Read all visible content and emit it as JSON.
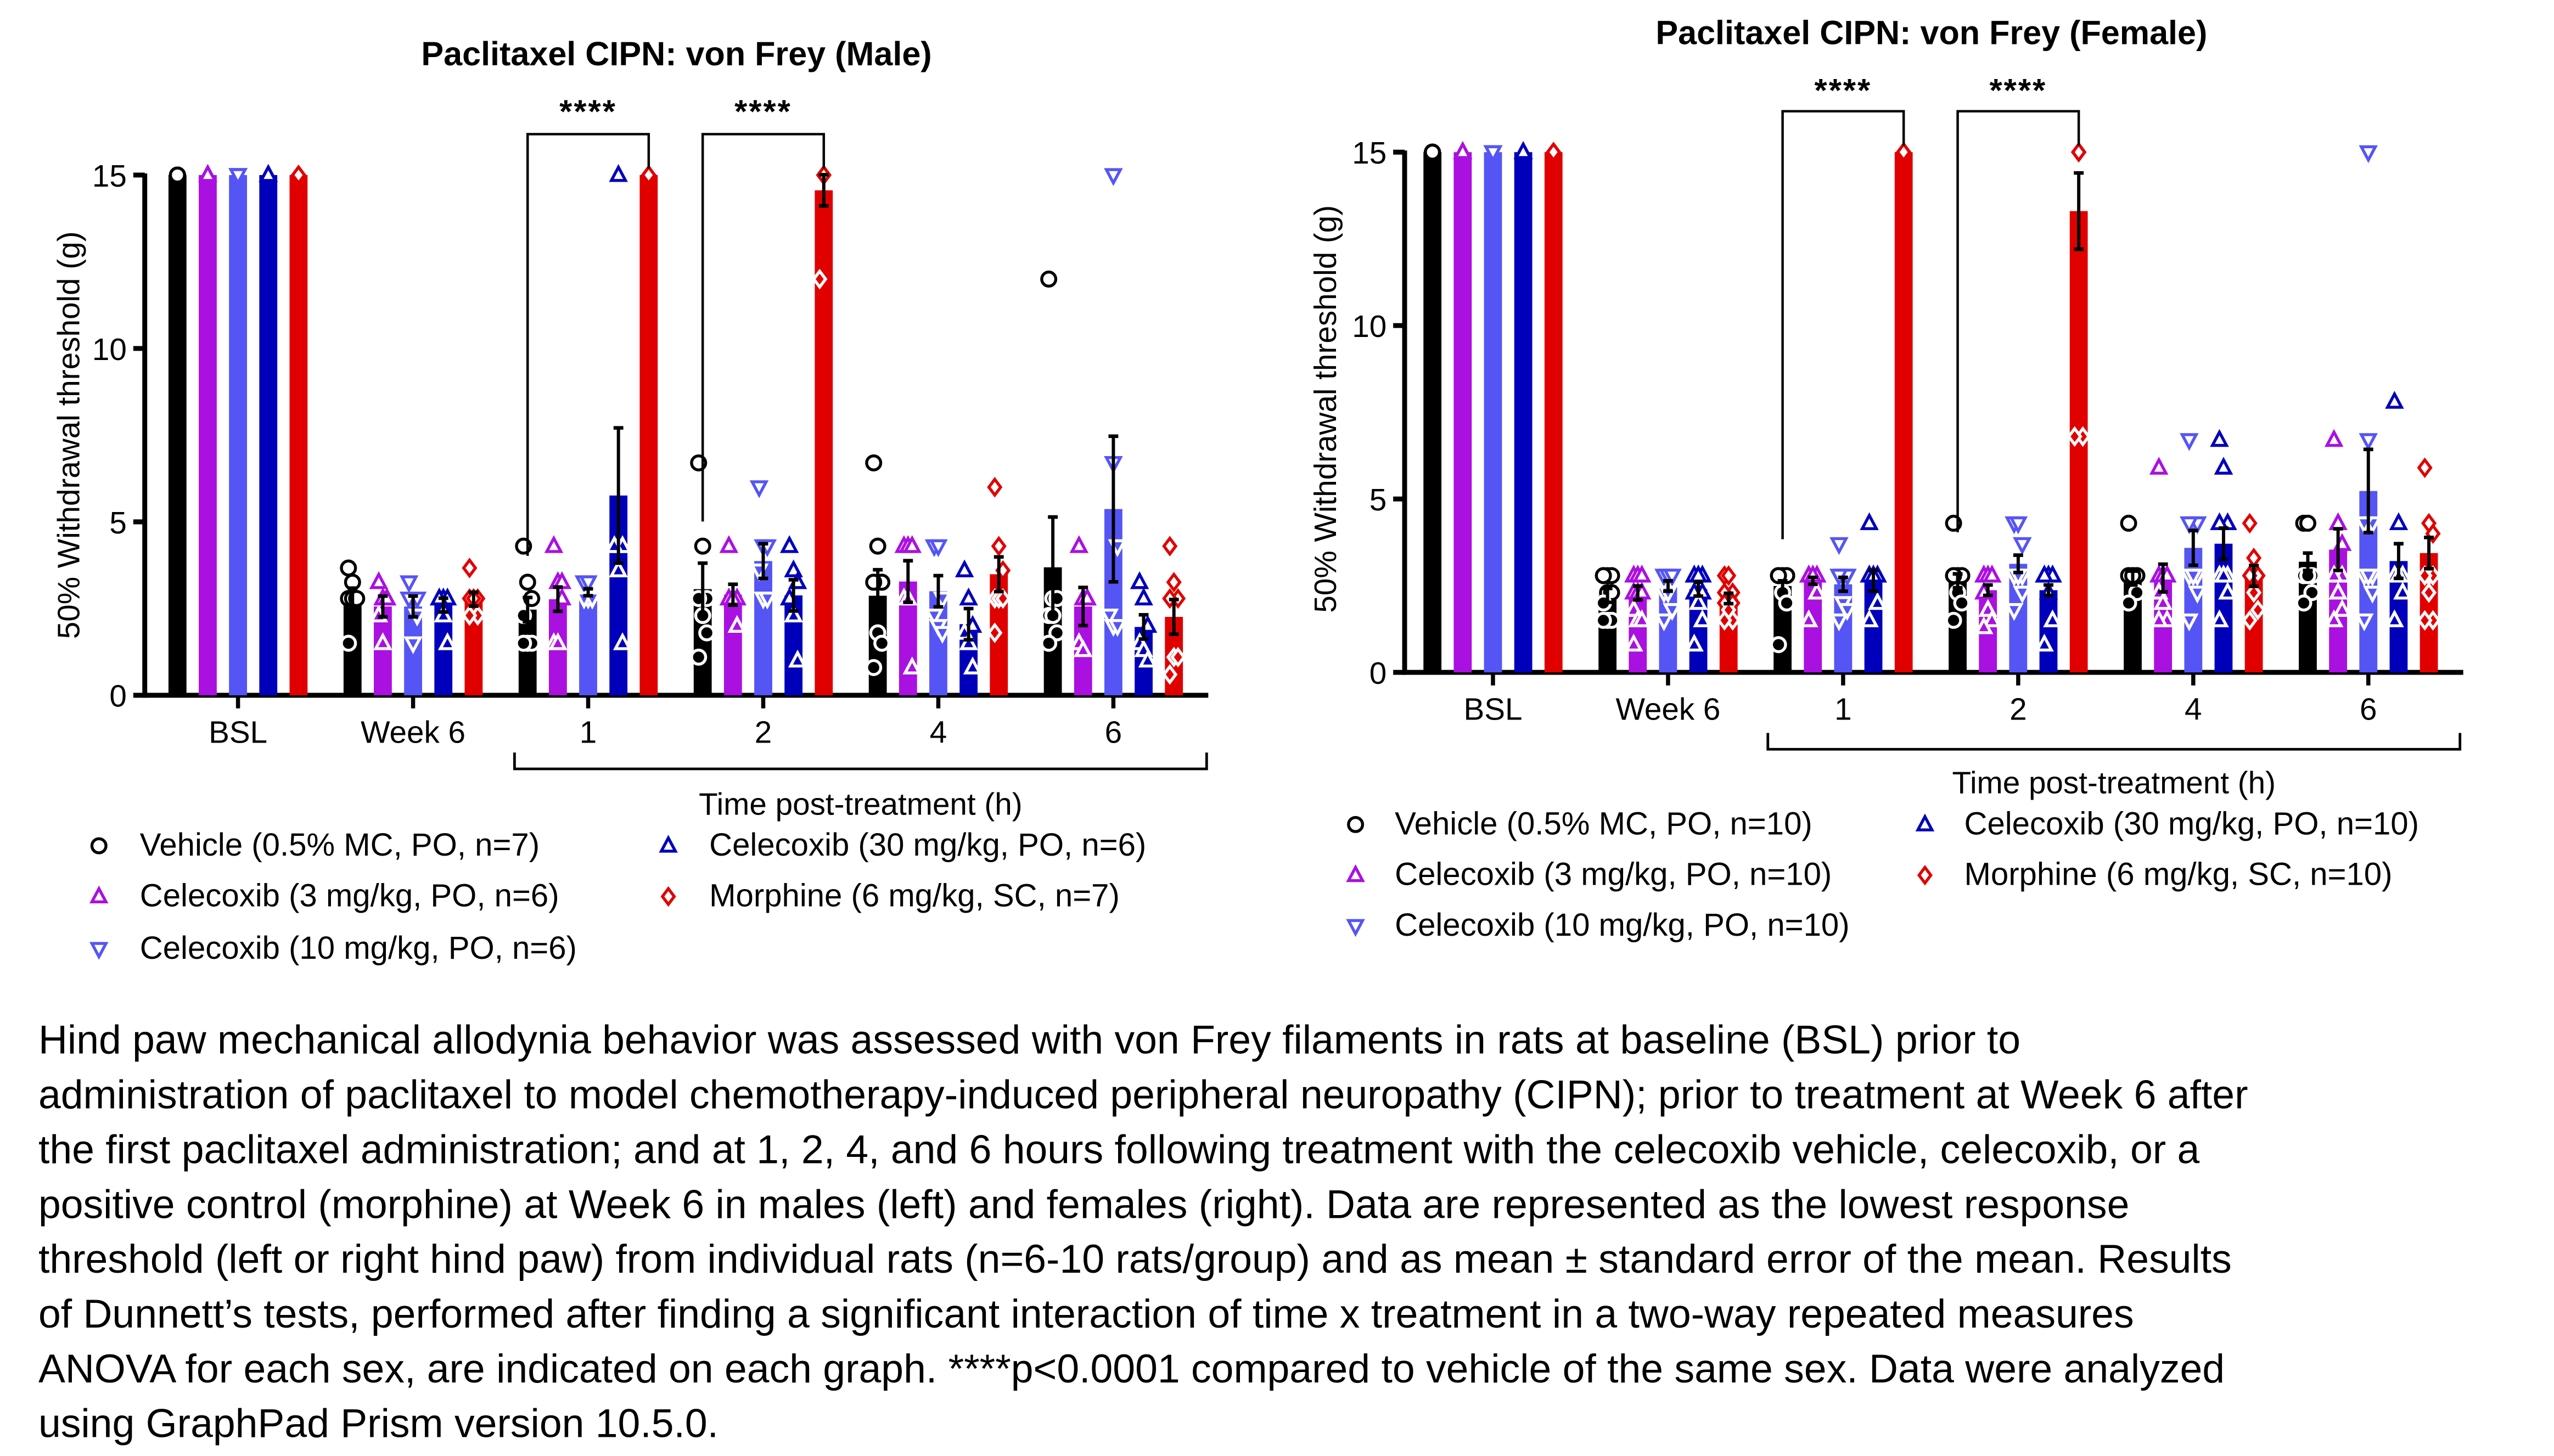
{
  "chart_data": [
    {
      "type": "bar",
      "title": "Paclitaxel CIPN: von Frey (Male)",
      "ylabel": "50% Withdrawal threshold (g)",
      "xlabel": "Time post-treatment (h)",
      "ylim": [
        0,
        15
      ],
      "yticks": [
        "0",
        "5",
        "10",
        "15"
      ],
      "categories": [
        "BSL",
        "Week 6",
        "1",
        "2",
        "4",
        "6"
      ],
      "grid": false,
      "legend_position": "bottom",
      "significance": [
        {
          "category": "1",
          "label": "****"
        },
        {
          "category": "2",
          "label": "****"
        }
      ],
      "series": [
        {
          "name": "Vehicle (0.5% MC, PO, n=7)",
          "color": "#000000",
          "marker": "circle",
          "values": [
            15,
            2.79,
            2.47,
            3.06,
            2.87,
            3.69
          ],
          "sem": [
            0,
            0.3,
            0.35,
            0.75,
            0.75,
            1.45
          ],
          "points": [
            [
              15,
              15,
              15,
              15,
              15,
              15,
              15
            ],
            [
              3.67,
              3.26,
              2.79,
              2.79,
              2.79,
              2.79,
              1.5
            ],
            [
              4.3,
              3.26,
              2.79,
              2.3,
              1.5,
              1.5,
              1.5
            ],
            [
              6.7,
              4.3,
              2.79,
              2.79,
              2.3,
              1.8,
              1.1
            ],
            [
              6.7,
              4.3,
              3.26,
              3.26,
              1.8,
              1.5,
              0.8
            ],
            [
              12,
              2.79,
              2.79,
              2.3,
              2.3,
              1.8,
              1.5
            ]
          ]
        },
        {
          "name": "Celecoxib (3 mg/kg, PO, n=6)",
          "color": "#aa10e0",
          "marker": "triangle-up",
          "values": [
            15,
            2.56,
            2.77,
            2.9,
            3.28,
            2.56
          ],
          "sem": [
            0,
            0.3,
            0.35,
            0.3,
            0.6,
            0.55
          ],
          "points": [
            [
              15,
              15,
              15,
              15,
              15,
              15
            ],
            [
              3.26,
              2.79,
              2.79,
              2.3,
              1.5,
              2.79
            ],
            [
              4.3,
              3.26,
              3.26,
              1.5,
              1.5,
              2.79
            ],
            [
              4.3,
              2.79,
              2.79,
              2.79,
              2.79,
              2.0
            ],
            [
              4.3,
              4.3,
              4.3,
              2.79,
              2.79,
              0.8
            ],
            [
              4.3,
              2.79,
              2.79,
              1.5,
              1.3,
              2.79
            ]
          ]
        },
        {
          "name": "Celecoxib (10 mg/kg, PO, n=6)",
          "color": "#5555f5",
          "marker": "triangle-down",
          "values": [
            15,
            2.56,
            2.97,
            3.87,
            3.0,
            5.37
          ],
          "sem": [
            0,
            0.3,
            0.1,
            0.5,
            0.45,
            2.1
          ],
          "points": [
            [
              15,
              15,
              15,
              15,
              15,
              15
            ],
            [
              3.26,
              2.79,
              2.79,
              2.79,
              1.5,
              2.3
            ],
            [
              3.26,
              2.79,
              2.79,
              2.79,
              3.26,
              2.79
            ],
            [
              6.0,
              4.3,
              4.3,
              3.6,
              2.79,
              2.79
            ],
            [
              4.3,
              4.3,
              2.79,
              2.3,
              2.0,
              1.8
            ],
            [
              15,
              6.7,
              4.3,
              2.3,
              2.0,
              2.0
            ]
          ]
        },
        {
          "name": "Celecoxib (30 mg/kg, PO, n=6)",
          "color": "#0000bb",
          "marker": "triangle-up",
          "values": [
            15,
            2.6,
            5.76,
            2.88,
            2.05,
            1.97
          ],
          "sem": [
            0,
            0.2,
            1.95,
            0.45,
            0.45,
            0.35
          ],
          "points": [
            [
              15,
              15,
              15,
              15,
              15,
              15
            ],
            [
              2.79,
              2.79,
              2.79,
              2.79,
              2.3,
              1.5
            ],
            [
              15,
              4.3,
              4.3,
              4.3,
              3.6,
              1.5
            ],
            [
              4.3,
              3.6,
              3.26,
              2.79,
              2.3,
              1.0
            ],
            [
              3.6,
              2.79,
              2.0,
              1.8,
              1.5,
              0.8
            ],
            [
              3.26,
              2.79,
              2.0,
              1.5,
              1.3,
              1.0
            ]
          ]
        },
        {
          "name": "Morphine (6 mg/kg, SC, n=7)",
          "color": "#e00000",
          "marker": "diamond",
          "values": [
            15,
            2.77,
            15,
            14.56,
            3.49,
            2.26
          ],
          "sem": [
            0,
            0.2,
            0,
            0.45,
            0.5,
            0.5
          ],
          "points": [
            [
              15,
              15,
              15,
              15,
              15,
              15,
              15
            ],
            [
              3.67,
              2.79,
              2.79,
              2.79,
              2.79,
              2.3,
              2.3
            ],
            [
              15,
              15,
              15,
              15,
              15,
              15,
              15
            ],
            [
              15,
              15,
              15,
              15,
              15,
              15,
              12.0
            ],
            [
              6.0,
              4.3,
              3.6,
              2.79,
              2.79,
              2.79,
              1.8
            ],
            [
              4.3,
              3.26,
              2.79,
              2.79,
              1.1,
              1.1,
              0.6
            ]
          ]
        }
      ]
    },
    {
      "type": "bar",
      "title": "Paclitaxel CIPN: von Frey (Female)",
      "ylabel": "50% Withdrawal threshold (g)",
      "xlabel": "Time post-treatment (h)",
      "ylim": [
        0,
        15
      ],
      "yticks": [
        "0",
        "5",
        "10",
        "15"
      ],
      "categories": [
        "BSL",
        "Week 6",
        "1",
        "2",
        "4",
        "6"
      ],
      "grid": false,
      "legend_position": "bottom",
      "significance": [
        {
          "category": "1",
          "label": "****"
        },
        {
          "category": "2",
          "label": "****"
        }
      ],
      "series": [
        {
          "name": "Vehicle (0.5% MC, PO, n=10)",
          "color": "#000000",
          "marker": "circle",
          "values": [
            15,
            2.22,
            2.49,
            2.64,
            2.72,
            3.19
          ],
          "sem": [
            0,
            0.2,
            0.15,
            0.2,
            0.2,
            0.25
          ],
          "points": [
            [
              15,
              15,
              15,
              15,
              15,
              15,
              15,
              15,
              15,
              15
            ],
            [
              2.79,
              2.79,
              2.79,
              2.79,
              2.3,
              2.3,
              2.0,
              1.5,
              1.5,
              1.5
            ],
            [
              2.79,
              2.79,
              2.79,
              2.79,
              2.79,
              2.79,
              2.79,
              2.3,
              2.0,
              0.8
            ],
            [
              4.3,
              2.79,
              2.79,
              2.79,
              2.79,
              2.79,
              2.79,
              2.3,
              2.0,
              1.5
            ],
            [
              4.3,
              2.79,
              2.79,
              2.79,
              2.79,
              2.79,
              2.79,
              2.79,
              2.3,
              2.0
            ],
            [
              4.3,
              4.3,
              2.79,
              2.79,
              2.79,
              2.79,
              2.79,
              2.79,
              2.3,
              2.0
            ]
          ]
        },
        {
          "name": "Celecoxib (3 mg/kg, PO, n=10)",
          "color": "#aa10e0",
          "marker": "triangle-up",
          "values": [
            15,
            2.29,
            2.64,
            2.37,
            2.72,
            3.54
          ],
          "sem": [
            0,
            0.2,
            0.1,
            0.15,
            0.4,
            0.6
          ],
          "points": [
            [
              15,
              15,
              15,
              15,
              15,
              15,
              15,
              15,
              15,
              15
            ],
            [
              2.79,
              2.79,
              2.79,
              2.3,
              2.3,
              2.3,
              1.8,
              1.5,
              1.5,
              0.8
            ],
            [
              2.79,
              2.79,
              2.79,
              2.79,
              2.79,
              2.79,
              2.79,
              2.79,
              2.3,
              1.5
            ],
            [
              2.79,
              2.79,
              2.79,
              2.79,
              2.79,
              2.79,
              2.3,
              1.8,
              1.5,
              1.3
            ],
            [
              5.9,
              2.79,
              2.79,
              2.79,
              2.79,
              2.79,
              2.3,
              2.0,
              1.5,
              1.5
            ],
            [
              6.7,
              4.3,
              3.7,
              2.79,
              2.79,
              2.79,
              2.79,
              2.3,
              1.8,
              1.5
            ]
          ]
        },
        {
          "name": "Celecoxib (10 mg/kg, PO, n=10)",
          "color": "#5555f5",
          "marker": "triangle-down",
          "values": [
            15,
            2.49,
            2.54,
            3.13,
            3.59,
            5.23
          ],
          "sem": [
            0,
            0.15,
            0.2,
            0.25,
            0.5,
            1.2
          ],
          "points": [
            [
              15,
              15,
              15,
              15,
              15,
              15,
              15,
              15,
              15,
              15
            ],
            [
              2.79,
              2.79,
              2.79,
              2.79,
              2.79,
              2.79,
              2.3,
              2.3,
              1.8,
              1.5
            ],
            [
              3.7,
              2.79,
              2.79,
              2.79,
              2.79,
              2.79,
              2.79,
              2.0,
              1.8,
              1.5
            ],
            [
              4.3,
              4.3,
              3.7,
              2.79,
              2.79,
              2.79,
              2.79,
              2.79,
              2.3,
              1.8
            ],
            [
              6.7,
              4.3,
              4.3,
              4.3,
              2.79,
              2.79,
              2.79,
              2.79,
              2.3,
              1.5
            ],
            [
              15,
              6.7,
              4.3,
              4.3,
              2.79,
              2.79,
              2.79,
              2.79,
              2.3,
              1.5
            ]
          ]
        },
        {
          "name": "Celecoxib (30 mg/kg, PO, n=10)",
          "color": "#0000bb",
          "marker": "triangle-up",
          "values": [
            15,
            2.4,
            2.64,
            2.37,
            3.71,
            3.21
          ],
          "sem": [
            0,
            0.2,
            0.3,
            0.15,
            0.45,
            0.5
          ],
          "points": [
            [
              15,
              15,
              15,
              15,
              15,
              15,
              15,
              15,
              15,
              15
            ],
            [
              2.79,
              2.79,
              2.79,
              2.79,
              2.79,
              2.3,
              2.3,
              2.0,
              1.5,
              0.8
            ],
            [
              4.3,
              2.79,
              2.79,
              2.79,
              2.79,
              2.79,
              2.79,
              2.79,
              2.0,
              1.5
            ],
            [
              2.79,
              2.79,
              2.79,
              2.79,
              2.79,
              2.79,
              2.79,
              2.3,
              1.5,
              0.8
            ],
            [
              6.7,
              5.9,
              4.3,
              4.3,
              2.79,
              2.79,
              2.79,
              2.79,
              2.3,
              1.5
            ],
            [
              7.8,
              4.3,
              2.79,
              2.79,
              2.79,
              2.79,
              2.79,
              2.79,
              2.3,
              1.5
            ]
          ]
        },
        {
          "name": "Morphine (6 mg/kg, SC, n=10)",
          "color": "#e00000",
          "marker": "diamond",
          "values": [
            15,
            2.13,
            15,
            13.3,
            2.78,
            3.44
          ],
          "sem": [
            0,
            0.15,
            0,
            1.1,
            0.3,
            0.45
          ],
          "points": [
            [
              15,
              15,
              15,
              15,
              15,
              15,
              15,
              15,
              15,
              15
            ],
            [
              2.79,
              2.79,
              2.3,
              2.3,
              2.0,
              2.0,
              2.0,
              1.8,
              1.5,
              1.5
            ],
            [
              15,
              15,
              15,
              15,
              15,
              15,
              15,
              15,
              15,
              15
            ],
            [
              15,
              15,
              15,
              15,
              15,
              15,
              15,
              15,
              6.8,
              6.8
            ],
            [
              4.3,
              3.3,
              2.79,
              2.79,
              2.79,
              2.79,
              2.79,
              2.3,
              1.8,
              1.5
            ],
            [
              5.9,
              4.3,
              4.0,
              2.79,
              2.79,
              2.79,
              2.79,
              2.3,
              1.5,
              1.5
            ]
          ]
        }
      ]
    }
  ],
  "caption": {
    "lines": [
      "Hind paw mechanical allodynia behavior was assessed with von Frey filaments in rats at baseline (BSL) prior to",
      "administration of paclitaxel to model chemotherapy-induced peripheral neuropathy (CIPN); prior to treatment at Week 6 after",
      "the first paclitaxel administration; and at 1, 2, 4, and 6 hours following treatment with the celecoxib vehicle, celecoxib, or a",
      "positive control (morphine) at Week 6 in males (left) and females (right). Data are represented as the lowest response",
      "threshold (left or right hind paw) from individual rats (n=6-10 rats/group) and as mean ± standard error of the mean. Results",
      "of Dunnett’s tests, performed after finding a significant interaction of time x treatment in a two-way repeated measures",
      "ANOVA for each sex, are indicated on each graph. ****p<0.0001 compared to vehicle of the same sex. Data were analyzed",
      "using GraphPad Prism version 10.5.0."
    ]
  }
}
